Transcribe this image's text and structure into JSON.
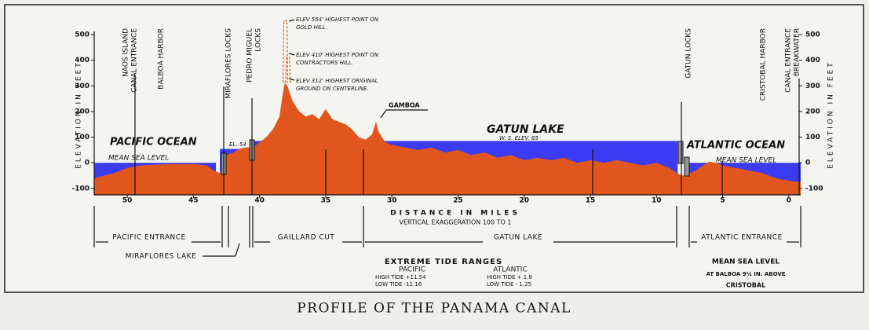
{
  "title": "PROFILE OF THE PANAMA CANAL",
  "chart_data": {
    "type": "area",
    "y_label": "ELEVATION IN FEET",
    "x_label": "DISTANCE IN MILES",
    "x_note": "VERTICAL EXAGGERATION 100 TO 1",
    "xlim": [
      52.5,
      -0.9
    ],
    "xticks": [
      50,
      45,
      40,
      35,
      30,
      25,
      20,
      15,
      10,
      5,
      0
    ],
    "ylim": [
      -125,
      500
    ],
    "yticks": [
      -100,
      0,
      100,
      200,
      300,
      400,
      500
    ],
    "x": [
      52.5,
      51,
      50,
      49,
      47,
      45,
      44,
      43.5,
      43,
      42.5,
      42,
      41.5,
      41,
      40.5,
      40,
      39.5,
      39,
      38.5,
      38.3,
      38.1,
      37.9,
      37.5,
      37,
      36.5,
      36,
      35.5,
      35,
      34.5,
      34,
      33.5,
      33,
      32.5,
      32,
      31.5,
      31.2,
      31,
      30.5,
      30,
      29,
      28,
      27,
      26,
      25,
      24,
      23,
      22,
      21,
      20,
      19,
      18,
      17,
      16,
      15,
      14,
      13,
      12,
      11,
      10,
      9,
      8.5,
      8,
      7.5,
      7,
      6.5,
      6,
      5.5,
      5,
      4,
      3,
      2,
      1,
      0,
      -0.9
    ],
    "series": [
      {
        "color": "#e0561c",
        "values": [
          -60,
          -40,
          -20,
          -10,
          -5,
          -5,
          -10,
          -30,
          -40,
          30,
          40,
          55,
          60,
          60,
          80,
          100,
          130,
          180,
          250,
          312,
          300,
          240,
          200,
          180,
          190,
          170,
          210,
          170,
          160,
          150,
          130,
          100,
          90,
          110,
          160,
          120,
          80,
          70,
          60,
          50,
          60,
          40,
          50,
          30,
          40,
          20,
          30,
          10,
          20,
          10,
          20,
          0,
          10,
          0,
          10,
          0,
          -10,
          0,
          -20,
          -40,
          -50,
          -40,
          -30,
          -10,
          5,
          0,
          -10,
          -20,
          -30,
          -40,
          -60,
          -70,
          -75
        ]
      }
    ],
    "water": {
      "color": "#3b3bf2",
      "bodies": [
        {
          "from": 52.5,
          "to": 43.3,
          "level": 0
        },
        {
          "from": 43.0,
          "to": 40.7,
          "level": 54
        },
        {
          "from": 40.4,
          "to": 8.4,
          "level": 85
        },
        {
          "from": 7.7,
          "to": -0.9,
          "level": 0
        }
      ]
    },
    "peaks": [
      {
        "x": 38.05,
        "value": 554
      },
      {
        "x": 37.85,
        "value": 410
      }
    ],
    "annotations": {
      "pacific_ocean": "PACIFIC OCEAN",
      "atlantic_ocean": "ATLANTIC OCEAN",
      "gatun_lake": "GATUN LAKE",
      "water_surface": "W. S. ELEV. 85",
      "mean_sea_level_left": "MEAN SEA LEVEL",
      "mean_sea_level_right": "MEAN SEA LEVEL",
      "el_54": "EL. 54",
      "gamboa": "GAMBOA",
      "gold_hill": [
        "ELEV 554' HIGHEST POINT ON",
        "GOLD HILL."
      ],
      "contractors_hill": [
        "ELEV 410' HIGHEST POINT ON",
        "CONTRACTORS HILL."
      ],
      "centerline": [
        "ELEV 312' HIGHEST ORIGINAL",
        "GROUND ON CENTERLINE."
      ],
      "landmarks": [
        [
          "NAOS ISLAND",
          "CANAL ENTRANCE"
        ],
        [
          "BALBOA HARBOR"
        ],
        [
          "MIRAFLORES LOCKS"
        ],
        [
          "PEDRO MIGUEL",
          "LOCKS"
        ],
        [
          "GATUN LOCKS"
        ],
        [
          "CRISTOBAL HARBOR"
        ],
        [
          "CANAL ENTRANCE",
          "BREAKWATER"
        ]
      ]
    }
  },
  "sections": [
    "PACIFIC ENTRANCE",
    "MIRAFLORES LAKE",
    "GAILLARD CUT",
    "GATUN LAKE",
    "ATLANTIC ENTRANCE"
  ],
  "tides": {
    "title": "EXTREME TIDE RANGES",
    "pacific": [
      "PACIFIC",
      "HIGH TIDE +11.54",
      "LOW TIDE -11.16"
    ],
    "atlantic": [
      "ATLANTIC",
      "HIGH TIDE + 1.8",
      "LOW TIDE - 1.25"
    ]
  },
  "mean_sea_level": [
    "MEAN SEA LEVEL",
    "AT BALBOA 9¼ IN. ABOVE",
    "CRISTOBAL"
  ]
}
